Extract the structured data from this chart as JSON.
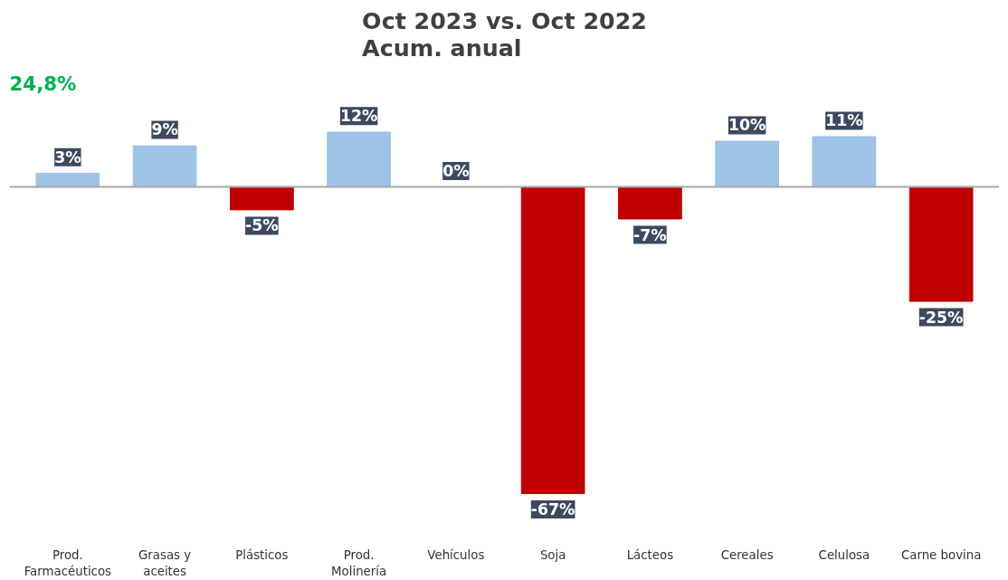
{
  "chart_data": {
    "type": "bar",
    "title": "Oct 2023 vs. Oct 2022\nAcum. anual",
    "categories": [
      "Prod.\nFarmacéuticos",
      "Grasas y\naceites",
      "Plásticos",
      "Prod.\nMolinería",
      "Vehículos",
      "Soja",
      "Lácteos",
      "Cereales",
      "Celulosa",
      "Carne bovina"
    ],
    "values": [
      3,
      9,
      -5,
      12,
      0,
      -67,
      -7,
      10,
      11,
      -25
    ],
    "colors": [
      "#9dc3e6",
      "#9dc3e6",
      "#c00000",
      "#9dc3e6",
      "#9dc3e6",
      "#c00000",
      "#c00000",
      "#9dc3e6",
      "#9dc3e6",
      "#c00000"
    ],
    "value_labels": [
      "3%",
      "9%",
      "-5%",
      "12%",
      "0%",
      "-67%",
      "-7%",
      "10%",
      "11%",
      "-25%"
    ],
    "annotations": [
      "24,8%"
    ],
    "tick_labels": "x",
    "grid": false
  }
}
